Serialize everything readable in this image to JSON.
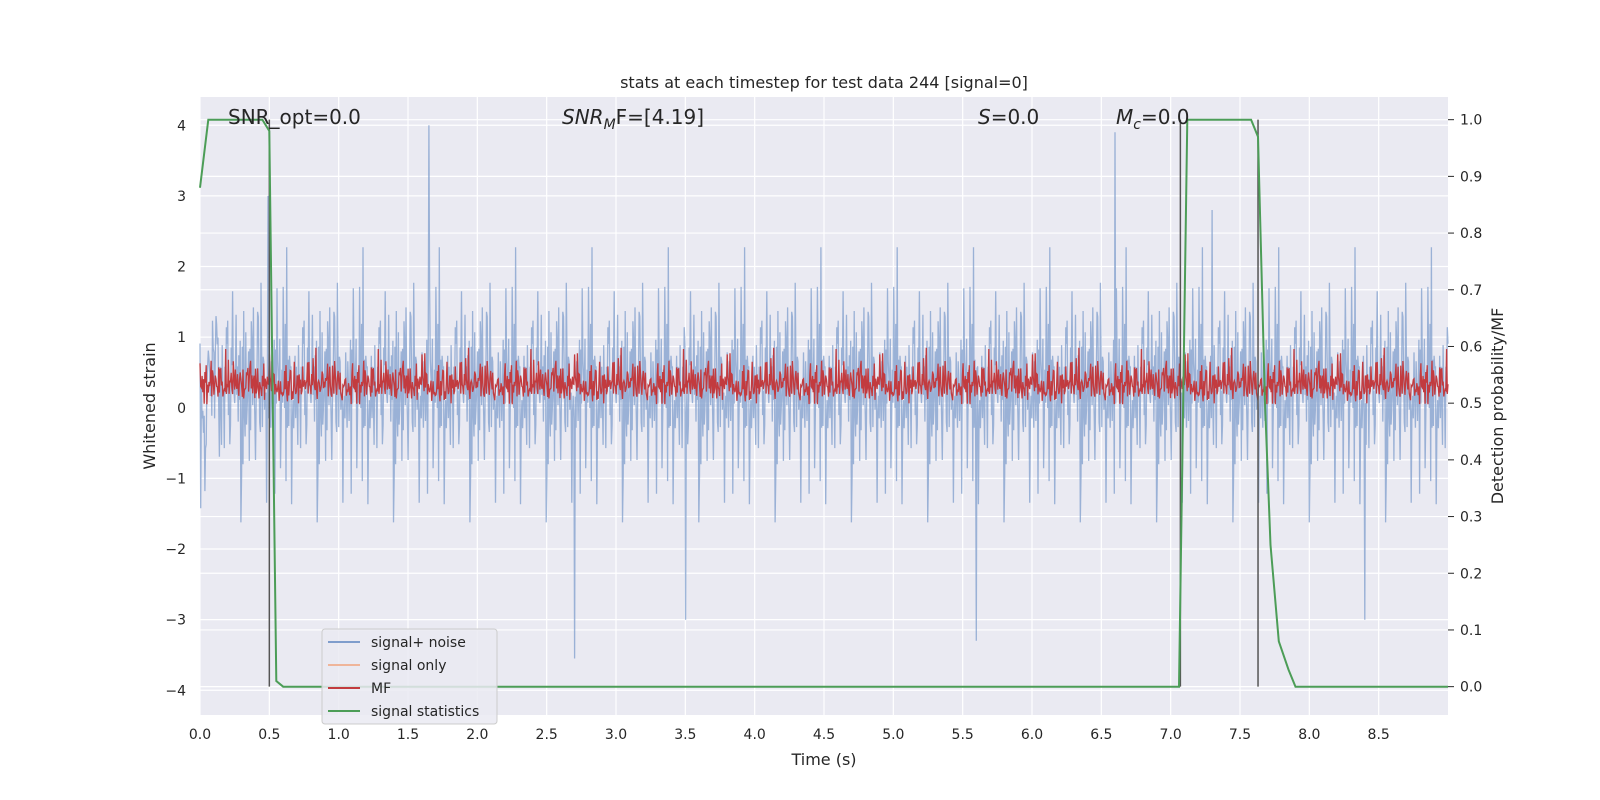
{
  "chart_data": {
    "type": "line",
    "title": "stats at each timestep for test data 244 [signal=0]",
    "xlabel": "Time (s)",
    "ylabel": "Whitened strain",
    "ylabel_right": "Detection probability/MF",
    "xlim": [
      0.0,
      9.0
    ],
    "ylim": [
      -4.35,
      4.4
    ],
    "ylim_right": [
      -0.05,
      1.04
    ],
    "x_ticks": [
      "0.0",
      "0.5",
      "1.0",
      "1.5",
      "2.0",
      "2.5",
      "3.0",
      "3.5",
      "4.0",
      "4.5",
      "5.0",
      "5.5",
      "6.0",
      "6.5",
      "7.0",
      "7.5",
      "8.0",
      "8.5"
    ],
    "y_ticks": [
      "4",
      "3",
      "2",
      "1",
      "0",
      "−1",
      "−2",
      "−3",
      "−4"
    ],
    "y_ticks_right": [
      "1.0",
      "0.9",
      "0.8",
      "0.7",
      "0.6",
      "0.5",
      "0.4",
      "0.3",
      "0.2",
      "0.1",
      "0.0"
    ],
    "annotations": {
      "snr_opt": "SNR_opt=0.0",
      "snr_mf_base": "SNR",
      "snr_mf_sub": "M",
      "snr_mf_rest": "F=[4.19]",
      "s": "S",
      "s_rest": "=0.0",
      "mc": "M",
      "mc_sub": "c",
      "mc_rest": "=0.0"
    },
    "legend": {
      "placement": "lower-left",
      "entries": [
        {
          "name": "signal+ noise",
          "color": "#7f9dcc"
        },
        {
          "name": "signal only",
          "color": "#efb59a"
        },
        {
          "name": "MF",
          "color": "#c23b3f"
        },
        {
          "name": "signal statistics",
          "color": "#4c9d57"
        }
      ]
    },
    "vlines_x": [
      0.5,
      7.07,
      7.63
    ],
    "series": [
      {
        "name": "signal+ noise",
        "axis": "left",
        "color": "#7f9dcc",
        "noise": {
          "samples": 1800,
          "peaks": [
            [
              1.65,
              4.0
            ],
            [
              0.49,
              3.0
            ],
            [
              2.7,
              -3.55
            ],
            [
              3.5,
              -3.0
            ],
            [
              5.6,
              -3.3
            ],
            [
              6.6,
              3.9
            ],
            [
              7.3,
              2.8
            ],
            [
              8.4,
              -3.0
            ]
          ]
        }
      },
      {
        "name": "MF",
        "axis": "left",
        "color": "#c23b3f",
        "band": [
          0.05,
          0.85
        ],
        "noise": {
          "samples": 1800
        }
      },
      {
        "name": "signal statistics",
        "axis": "right",
        "color": "#4c9d57",
        "x": [
          0.0,
          0.06,
          0.12,
          0.45,
          0.5,
          0.55,
          0.6,
          0.65,
          7.0,
          7.06,
          7.12,
          7.58,
          7.63,
          7.68,
          7.72,
          7.78,
          7.85,
          7.9,
          9.0
        ],
        "y": [
          0.88,
          1.0,
          1.0,
          1.0,
          0.98,
          0.01,
          0.0,
          0.0,
          0.0,
          0.0,
          1.0,
          1.0,
          0.97,
          0.5,
          0.25,
          0.08,
          0.03,
          0.0,
          0.0
        ]
      }
    ],
    "grid": true
  },
  "colors": {
    "plot_background": "#eaeaf2",
    "grid": "#ffffff",
    "vline": "#555555"
  }
}
